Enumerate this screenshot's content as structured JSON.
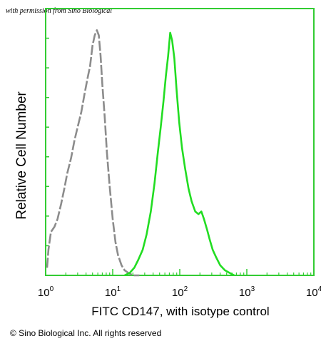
{
  "watermark": "with permission from Sino Biological",
  "copyright": "© Sino Biological Inc. All rights reserved",
  "chart_data": {
    "type": "line",
    "xlabel": "FITC  CD147, with isotype control",
    "ylabel": "Relative Cell Number",
    "xscale": "log",
    "xlim": [
      1,
      10000
    ],
    "ylim": [
      0,
      100
    ],
    "xticks": [
      {
        "base": "10",
        "exp": "0"
      },
      {
        "base": "10",
        "exp": "1"
      },
      {
        "base": "10",
        "exp": "2"
      },
      {
        "base": "10",
        "exp": "3"
      },
      {
        "base": "10",
        "exp": "4"
      }
    ],
    "grid": false,
    "legend": "none",
    "colors": {
      "frame": "#33cc33",
      "isotype": "#8c8c8c",
      "sample": "#22dd22"
    },
    "series": [
      {
        "style": "dashed",
        "x": [
          1.05,
          1.1,
          1.2,
          1.35,
          1.5,
          1.7,
          1.9,
          2.1,
          2.4,
          2.7,
          3.0,
          3.4,
          3.8,
          4.2,
          4.6,
          5.0,
          5.4,
          5.8,
          6.2,
          6.6,
          7.0,
          7.6,
          8.2,
          9.0,
          10.0,
          11.0,
          12.0,
          13.5,
          15.0,
          17.0,
          20.0,
          25.0
        ],
        "y": [
          3,
          10,
          17,
          19,
          22,
          28,
          34,
          40,
          46,
          53,
          58,
          64,
          71,
          77,
          82,
          90,
          94,
          96,
          94,
          86,
          75,
          62,
          48,
          35,
          22,
          13,
          8,
          4,
          2,
          1,
          0,
          0
        ]
      },
      {
        "style": "solid",
        "x": [
          15.0,
          18.0,
          21.0,
          24.0,
          28.0,
          32.0,
          37.0,
          42.0,
          47.0,
          52.0,
          57.0,
          62.0,
          67.0,
          72.0,
          77.0,
          83.0,
          90.0,
          98.0,
          108.0,
          120.0,
          135.0,
          150.0,
          170.0,
          190.0,
          210.0,
          230.0,
          255.0,
          280.0,
          310.0,
          350.0,
          400.0,
          470.0,
          550.0,
          650.0
        ],
        "y": [
          0,
          1,
          3,
          6,
          10,
          16,
          25,
          36,
          48,
          58,
          68,
          78,
          86,
          95,
          92,
          85,
          72,
          60,
          50,
          42,
          34,
          29,
          25,
          24,
          25,
          22,
          18,
          14,
          10,
          7,
          4,
          2,
          1,
          0
        ]
      }
    ]
  }
}
